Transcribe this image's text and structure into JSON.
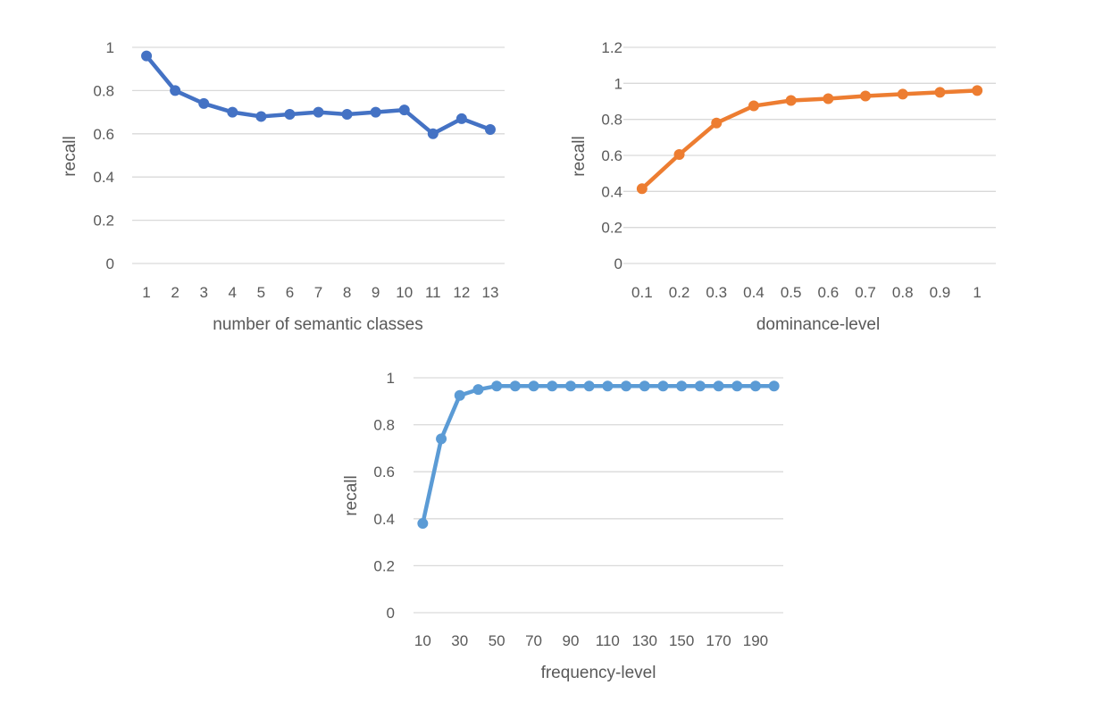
{
  "chart_data": [
    {
      "type": "line",
      "title": "",
      "xlabel": "number of semantic classes",
      "ylabel": "recall",
      "categories": [
        "1",
        "2",
        "3",
        "4",
        "5",
        "6",
        "7",
        "8",
        "9",
        "10",
        "11",
        "12",
        "13"
      ],
      "category_labels_shown": [
        "1",
        "2",
        "3",
        "4",
        "5",
        "6",
        "7",
        "8",
        "9",
        "10",
        "11",
        "12",
        "13"
      ],
      "values": [
        0.96,
        0.8,
        0.74,
        0.7,
        0.68,
        0.69,
        0.7,
        0.69,
        0.7,
        0.71,
        0.6,
        0.67,
        0.62
      ],
      "ylim": [
        0,
        1
      ],
      "yticks": [
        "0",
        "0.2",
        "0.4",
        "0.6",
        "0.8",
        "1"
      ],
      "grid": true,
      "color": "#4472C4"
    },
    {
      "type": "line",
      "title": "",
      "xlabel": "dominance-level",
      "ylabel": "recall",
      "categories": [
        "0.1",
        "0.2",
        "0.3",
        "0.4",
        "0.5",
        "0.6",
        "0.7",
        "0.8",
        "0.9",
        "1"
      ],
      "category_labels_shown": [
        "0.1",
        "0.2",
        "0.3",
        "0.4",
        "0.5",
        "0.6",
        "0.7",
        "0.8",
        "0.9",
        "1"
      ],
      "values": [
        0.415,
        0.605,
        0.78,
        0.875,
        0.905,
        0.915,
        0.93,
        0.94,
        0.95,
        0.96
      ],
      "ylim": [
        0,
        1.2
      ],
      "yticks": [
        "0",
        "0.2",
        "0.4",
        "0.6",
        "0.8",
        "1",
        "1.2"
      ],
      "grid": true,
      "color": "#ED7D31"
    },
    {
      "type": "line",
      "title": "",
      "xlabel": "frequency-level",
      "ylabel": "recall",
      "categories": [
        "10",
        "20",
        "30",
        "40",
        "50",
        "60",
        "70",
        "80",
        "90",
        "100",
        "110",
        "120",
        "130",
        "140",
        "150",
        "160",
        "170",
        "180",
        "190",
        "200"
      ],
      "category_labels_shown": [
        "10",
        "",
        "30",
        "",
        "50",
        "",
        "70",
        "",
        "90",
        "",
        "110",
        "",
        "130",
        "",
        "150",
        "",
        "170",
        "",
        "190",
        ""
      ],
      "values": [
        0.38,
        0.74,
        0.925,
        0.95,
        0.965,
        0.965,
        0.965,
        0.965,
        0.965,
        0.965,
        0.965,
        0.965,
        0.965,
        0.965,
        0.965,
        0.965,
        0.965,
        0.965,
        0.965,
        0.965
      ],
      "ylim": [
        0,
        1
      ],
      "yticks": [
        "0",
        "0.2",
        "0.4",
        "0.6",
        "0.8",
        "1"
      ],
      "grid": true,
      "color": "#5B9BD5"
    }
  ]
}
